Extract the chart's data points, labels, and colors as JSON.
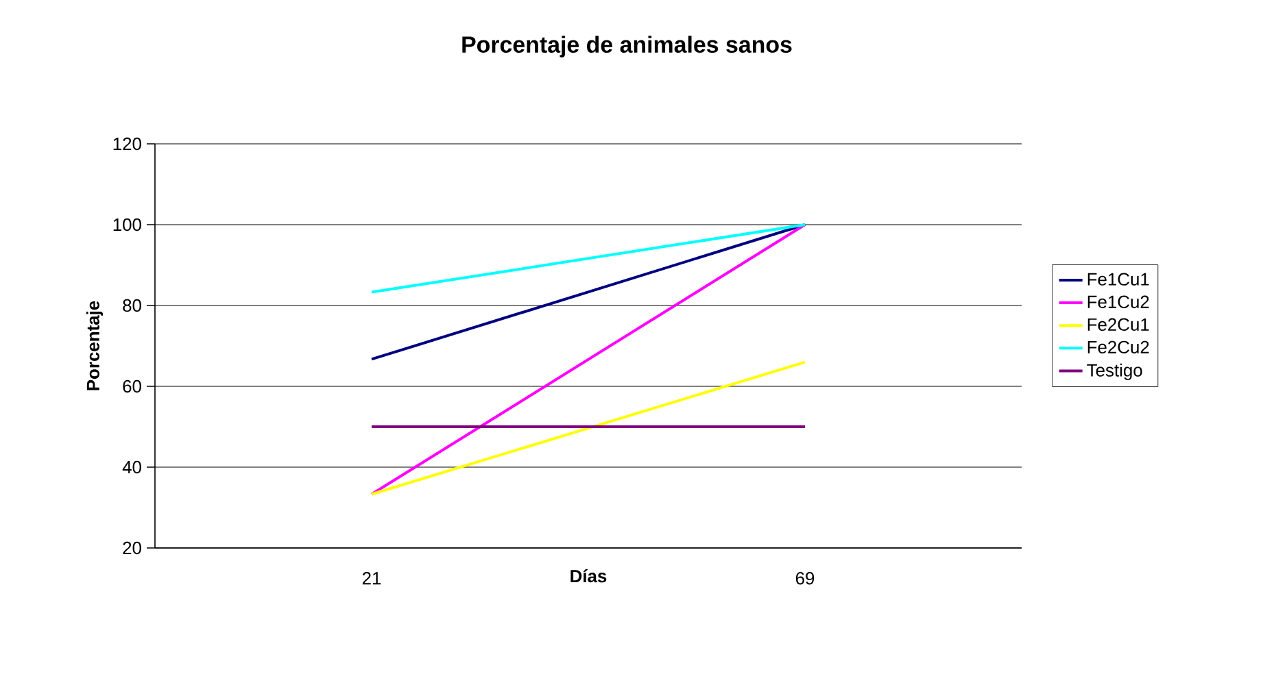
{
  "chart_data": {
    "type": "line",
    "title": "Porcentaje de animales sanos",
    "xlabel": "Días",
    "ylabel": "Porcentaje",
    "categories": [
      "21",
      "69"
    ],
    "series": [
      {
        "name": "Fe1Cu1",
        "color": "#000080",
        "values": [
          66.7,
          100
        ]
      },
      {
        "name": "Fe1Cu2",
        "color": "#ff00ff",
        "values": [
          33.3,
          100
        ]
      },
      {
        "name": "Fe2Cu1",
        "color": "#ffff00",
        "values": [
          33.3,
          66
        ]
      },
      {
        "name": "Fe2Cu2",
        "color": "#00ffff",
        "values": [
          83.3,
          100
        ]
      },
      {
        "name": "Testigo",
        "color": "#800080",
        "values": [
          50,
          50
        ]
      }
    ],
    "ylim": [
      20,
      120
    ],
    "yticks": [
      20,
      40,
      60,
      80,
      100,
      120
    ],
    "grid": "y",
    "legend": "right",
    "marker": "none",
    "line_style": "solid"
  }
}
